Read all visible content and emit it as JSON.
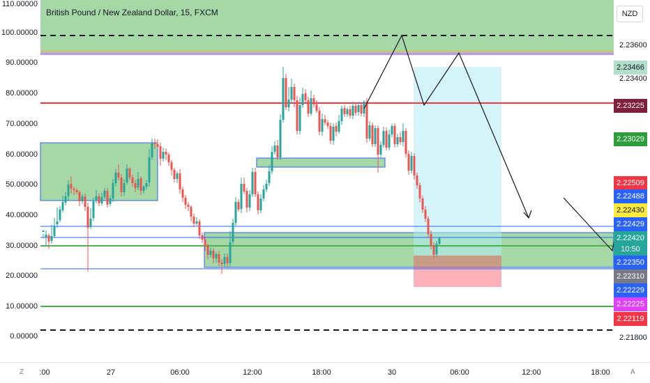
{
  "symbol_title": "British Pound / New Zealand Dollar, 15, FXCM",
  "currency_button": "NZD",
  "left_axis_labels": [
    "110.00000",
    "100.00000",
    "90.00000",
    "80.00000",
    "70.00000",
    "60.00000",
    "50.00000",
    "40.00000",
    "30.00000",
    "20.00000",
    "10.00000",
    "0.00000"
  ],
  "right_axis_labels": [
    "2.23600",
    "2.23400",
    "2.21800"
  ],
  "badges": [
    {
      "text": "2.23466",
      "bg": "#b2dfcc",
      "dark": true
    },
    {
      "text": "2.23225",
      "bg": "#801f3b"
    },
    {
      "text": "2.23029",
      "bg": "#2e9d3b"
    },
    {
      "text": "2.22509",
      "bg": "#f23645"
    },
    {
      "text": "2.22488",
      "bg": "#2962ff"
    },
    {
      "text": "2.22430",
      "bg": "#ffeb3b",
      "dark": true
    },
    {
      "text": "2.22429",
      "bg": "#2962ff"
    },
    {
      "text": "2.22420",
      "bg": "#26a69a"
    },
    {
      "text": "10:50",
      "bg": "#26a69a"
    },
    {
      "text": "2.22350",
      "bg": "#2962ff"
    },
    {
      "text": "2.22310",
      "bg": "#787b86"
    },
    {
      "text": "2.22229",
      "bg": "#2962ff"
    },
    {
      "text": "2.22225",
      "bg": "#e040fb"
    },
    {
      "text": "2.22119",
      "bg": "#f23645"
    }
  ],
  "time_labels": [
    ":00",
    "27",
    "06:00",
    "12:00",
    "18:00",
    "30",
    "06:00",
    "12:00",
    "18:00"
  ],
  "corner_left": "Z",
  "corner_right": "A",
  "colors": {
    "up": "#26a69a",
    "down": "#ef5350",
    "zone_green": "#4caf50",
    "target_blue": "#b2ebf2",
    "stop_red": "#f7525f",
    "level_red": "#f23645",
    "level_green": "#4caf50",
    "level_blue": "#2962ff"
  }
}
